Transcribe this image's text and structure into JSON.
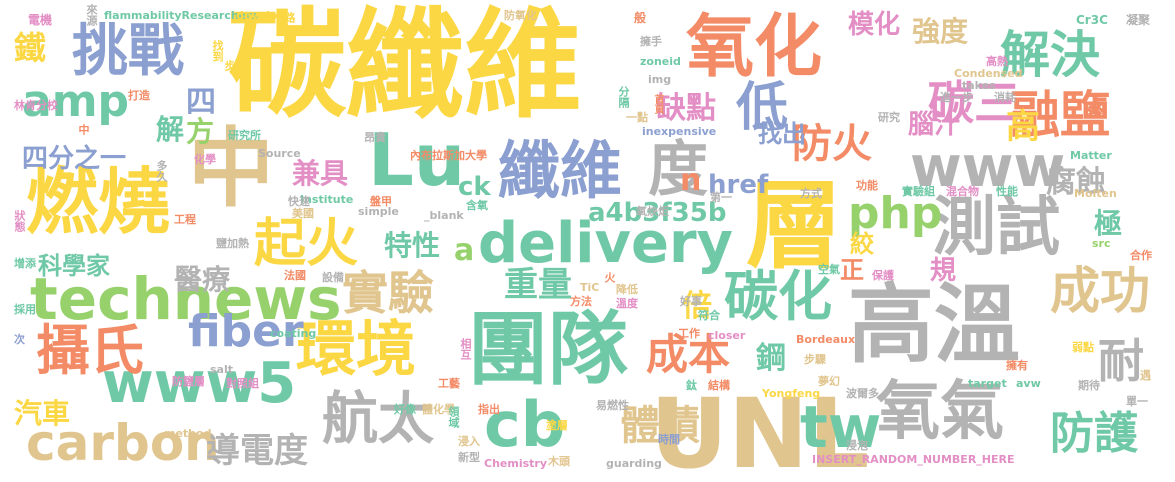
{
  "palette": {
    "yellow": "#fcd744",
    "blue": "#8b9fd0",
    "green": "#96d16c",
    "teal": "#6fc9a6",
    "orange": "#f38b66",
    "pink": "#e38fc5",
    "tan": "#e1c58e",
    "grey": "#b3b3b3"
  },
  "words": [
    {
      "text": "碳纖維",
      "color": "yellow"
    },
    {
      "text": "UNL",
      "color": "tan"
    },
    {
      "text": "團隊",
      "color": "teal"
    },
    {
      "text": "高溫",
      "color": "grey"
    },
    {
      "text": "層",
      "color": "yellow"
    },
    {
      "text": "氧化",
      "color": "orange"
    },
    {
      "text": "燃燒",
      "color": "yellow"
    },
    {
      "text": "Lu",
      "color": "teal"
    },
    {
      "text": "中",
      "color": "tan"
    },
    {
      "text": "delivery",
      "color": "teal"
    },
    {
      "text": "纖維",
      "color": "blue"
    },
    {
      "text": "technews",
      "color": "green"
    },
    {
      "text": "www5",
      "color": "teal"
    },
    {
      "text": "氧氣",
      "color": "grey"
    },
    {
      "text": "挑戰",
      "color": "blue"
    },
    {
      "text": "測試",
      "color": "grey"
    },
    {
      "text": "環境",
      "color": "yellow"
    },
    {
      "text": "carbon",
      "color": "tan"
    },
    {
      "text": "cb",
      "color": "teal"
    },
    {
      "text": "www",
      "color": "grey"
    },
    {
      "text": "php",
      "color": "green"
    },
    {
      "text": "tw",
      "color": "teal"
    },
    {
      "text": "碳化",
      "color": "teal"
    },
    {
      "text": "度",
      "color": "grey"
    },
    {
      "text": "amp",
      "color": "teal"
    },
    {
      "text": "攝氏",
      "color": "orange"
    },
    {
      "text": "航太",
      "color": "grey"
    },
    {
      "text": "解決",
      "color": "teal"
    },
    {
      "text": "融鹽",
      "color": "orange"
    },
    {
      "text": "起火",
      "color": "yellow"
    },
    {
      "text": "成功",
      "color": "tan"
    },
    {
      "text": "防護",
      "color": "teal"
    },
    {
      "text": "fiber",
      "color": "blue"
    },
    {
      "text": "成本",
      "color": "orange"
    },
    {
      "text": "實驗",
      "color": "tan"
    },
    {
      "text": "碳三",
      "color": "pink"
    },
    {
      "text": "防火",
      "color": "orange"
    },
    {
      "text": "低",
      "color": "blue"
    },
    {
      "text": "體積",
      "color": "tan"
    },
    {
      "text": "耐",
      "color": "grey"
    },
    {
      "text": "導電度",
      "color": "grey"
    },
    {
      "text": "重量",
      "color": "teal"
    },
    {
      "text": "a4b3f35b",
      "color": "teal"
    },
    {
      "text": "強度",
      "color": "tan"
    },
    {
      "text": "模化",
      "color": "pink"
    },
    {
      "text": "缺點",
      "color": "pink"
    },
    {
      "text": "兼具",
      "color": "pink"
    },
    {
      "text": "特性",
      "color": "teal"
    },
    {
      "text": "醫療",
      "color": "grey"
    },
    {
      "text": "鐵",
      "color": "yellow"
    },
    {
      "text": "汽車",
      "color": "yellow"
    },
    {
      "text": "四分之一",
      "color": "blue"
    },
    {
      "text": "找出",
      "color": "blue"
    },
    {
      "text": "鋼",
      "color": "teal"
    },
    {
      "text": "腐蝕",
      "color": "grey"
    },
    {
      "text": "href",
      "color": "blue"
    },
    {
      "text": "ck",
      "color": "teal"
    },
    {
      "text": "科學家",
      "color": "teal"
    },
    {
      "text": "倍",
      "color": "yellow"
    },
    {
      "text": "高",
      "color": "yellow"
    },
    {
      "text": "腦汁",
      "color": "pink"
    },
    {
      "text": "解",
      "color": "teal"
    },
    {
      "text": "方",
      "color": "green"
    },
    {
      "text": "四",
      "color": "blue"
    },
    {
      "text": "極",
      "color": "teal"
    },
    {
      "text": "絞",
      "color": "yellow"
    },
    {
      "text": "正",
      "color": "orange"
    },
    {
      "text": "規",
      "color": "pink"
    },
    {
      "text": "n",
      "color": "orange"
    },
    {
      "text": "a",
      "color": "green"
    },
    {
      "text": "電機",
      "color": "pink"
    },
    {
      "text": "flammabilityResearchers",
      "color": "teal"
    },
    {
      "text": "develop",
      "color": "yellow"
    },
    {
      "text": "防氧化",
      "color": "tan"
    },
    {
      "text": "般",
      "color": "orange"
    },
    {
      "text": "Cr3C",
      "color": "teal"
    },
    {
      "text": "凝聚",
      "color": "grey"
    },
    {
      "text": "擁手",
      "color": "grey"
    },
    {
      "text": "zoneid",
      "color": "teal"
    },
    {
      "text": "img",
      "color": "grey"
    },
    {
      "text": "高熱",
      "color": "pink"
    },
    {
      "text": "Condensed",
      "color": "tan"
    },
    {
      "text": "takes",
      "color": "grey"
    },
    {
      "text": "進一步",
      "color": "grey"
    },
    {
      "text": "消耗",
      "color": "grey"
    },
    {
      "text": "打造",
      "color": "orange"
    },
    {
      "text": "林肯分校",
      "color": "pink"
    },
    {
      "text": "研究所",
      "color": "teal"
    },
    {
      "text": "昂貴",
      "color": "grey"
    },
    {
      "text": "內布拉斯加大學",
      "color": "orange"
    },
    {
      "text": "一點",
      "color": "tan"
    },
    {
      "text": "inexpensive",
      "color": "blue"
    },
    {
      "text": "研究",
      "color": "grey"
    },
    {
      "text": "Matter",
      "color": "teal"
    },
    {
      "text": "Source",
      "color": "grey"
    },
    {
      "text": "化學",
      "color": "pink"
    },
    {
      "text": "Institute",
      "color": "teal"
    },
    {
      "text": "盤甲",
      "color": "orange"
    },
    {
      "text": "第一",
      "color": "grey"
    },
    {
      "text": "功能",
      "color": "orange"
    },
    {
      "text": "實驗組",
      "color": "teal"
    },
    {
      "text": "混合物",
      "color": "pink"
    },
    {
      "text": "性能",
      "color": "teal"
    },
    {
      "text": "Molten",
      "color": "tan"
    },
    {
      "text": "工程",
      "color": "orange"
    },
    {
      "text": "快速",
      "color": "grey"
    },
    {
      "text": "美國",
      "color": "tan"
    },
    {
      "text": "simple",
      "color": "grey"
    },
    {
      "text": "_blank",
      "color": "grey"
    },
    {
      "text": "含氧",
      "color": "teal"
    },
    {
      "text": "氧炔炬",
      "color": "grey"
    },
    {
      "text": "方式",
      "color": "grey"
    },
    {
      "text": "src",
      "color": "green"
    },
    {
      "text": "合作",
      "color": "orange"
    },
    {
      "text": "增添",
      "color": "teal"
    },
    {
      "text": "法國",
      "color": "orange"
    },
    {
      "text": "設備",
      "color": "grey"
    },
    {
      "text": "空氣",
      "color": "teal"
    },
    {
      "text": "保護",
      "color": "pink"
    },
    {
      "text": "鹽加熱",
      "color": "grey"
    },
    {
      "text": "採用",
      "color": "teal"
    },
    {
      "text": "TiC",
      "color": "tan"
    },
    {
      "text": "方法",
      "color": "orange"
    },
    {
      "text": "降低",
      "color": "tan"
    },
    {
      "text": "溫度",
      "color": "pink"
    },
    {
      "text": "好事",
      "color": "grey"
    },
    {
      "text": "符合",
      "color": "teal"
    },
    {
      "text": "coating",
      "color": "teal"
    },
    {
      "text": "closer",
      "color": "pink"
    },
    {
      "text": "工作",
      "color": "orange"
    },
    {
      "text": "Bordeaux",
      "color": "orange"
    },
    {
      "text": "步驟",
      "color": "tan"
    },
    {
      "text": "弱點",
      "color": "yellow"
    },
    {
      "text": "遇",
      "color": "tan"
    },
    {
      "text": "次",
      "color": "blue"
    },
    {
      "text": "salt",
      "color": "grey"
    },
    {
      "text": "防鹽層",
      "color": "pink"
    },
    {
      "text": "對照組",
      "color": "pink"
    },
    {
      "text": "工藝",
      "color": "orange"
    },
    {
      "text": "鈦",
      "color": "teal"
    },
    {
      "text": "結構",
      "color": "orange"
    },
    {
      "text": "夢幻",
      "color": "tan"
    },
    {
      "text": "波爾多",
      "color": "grey"
    },
    {
      "text": "target",
      "color": "teal"
    },
    {
      "text": "avw",
      "color": "teal"
    },
    {
      "text": "擁有",
      "color": "orange"
    },
    {
      "text": "期待",
      "color": "grey"
    },
    {
      "text": "單一",
      "color": "grey"
    },
    {
      "text": "method",
      "color": "tan"
    },
    {
      "text": "好像",
      "color": "teal"
    },
    {
      "text": "體化學",
      "color": "tan"
    },
    {
      "text": "指出",
      "color": "orange"
    },
    {
      "text": "塗層",
      "color": "yellow"
    },
    {
      "text": "易燃性",
      "color": "grey"
    },
    {
      "text": "Yongfeng",
      "color": "yellow"
    },
    {
      "text": "浸入",
      "color": "tan"
    },
    {
      "text": "新型",
      "color": "grey"
    },
    {
      "text": "Chemistry",
      "color": "pink"
    },
    {
      "text": "木頭",
      "color": "tan"
    },
    {
      "text": "guarding",
      "color": "grey"
    },
    {
      "text": "時間",
      "color": "blue"
    },
    {
      "text": "浸泡",
      "color": "grey"
    },
    {
      "text": "INSERT_RANDOM_NUMBER_HERE",
      "color": "pink"
    },
    {
      "text": "路",
      "color": "yellow"
    },
    {
      "text": "找到",
      "color": "yellow"
    },
    {
      "text": "首頁",
      "color": "orange"
    },
    {
      "text": "分隔",
      "color": "teal"
    },
    {
      "text": "多久",
      "color": "grey"
    },
    {
      "text": "狀態",
      "color": "pink"
    },
    {
      "text": "來源",
      "color": "grey"
    },
    {
      "text": "步",
      "color": "yellow"
    },
    {
      "text": "中",
      "color": "orange"
    },
    {
      "text": "火",
      "color": "orange"
    },
    {
      "text": "領域",
      "color": "teal"
    },
    {
      "text": "相互",
      "color": "pink"
    }
  ]
}
